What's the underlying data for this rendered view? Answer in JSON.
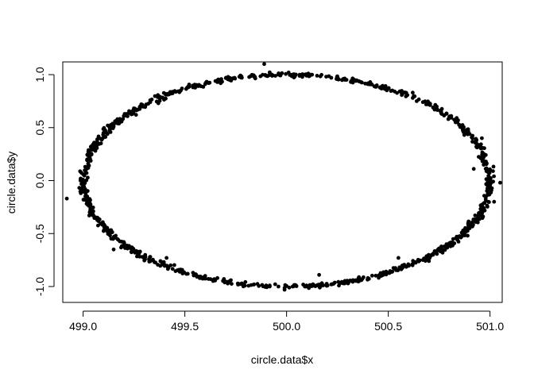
{
  "chart_data": {
    "type": "scatter",
    "title": "",
    "xlabel": "circle.data$x",
    "ylabel": "circle.data$y",
    "xlim": [
      498.9,
      501.06
    ],
    "ylim": [
      -1.15,
      1.12
    ],
    "x_ticks": [
      499.0,
      499.5,
      500.0,
      500.5,
      501.0
    ],
    "x_tick_labels": [
      "499.0",
      "499.5",
      "500.0",
      "500.5",
      "501.0"
    ],
    "y_ticks": [
      -1.0,
      -0.5,
      0.0,
      0.5,
      1.0
    ],
    "y_tick_labels": [
      "-1.0",
      "-0.5",
      "0.0",
      "0.5",
      "1.0"
    ],
    "grid": false,
    "legend": "none",
    "point_color": "#000000",
    "points": [
      [
        501.0,
        0.0
      ],
      [
        500.99,
        0.08
      ],
      [
        500.98,
        0.18
      ],
      [
        500.97,
        0.25
      ],
      [
        500.95,
        0.32
      ],
      [
        500.93,
        0.38
      ],
      [
        500.9,
        0.44
      ],
      [
        500.87,
        0.49
      ],
      [
        500.84,
        0.55
      ],
      [
        500.8,
        0.6
      ],
      [
        500.76,
        0.65
      ],
      [
        500.72,
        0.69
      ],
      [
        500.67,
        0.74
      ],
      [
        500.62,
        0.78
      ],
      [
        500.57,
        0.82
      ],
      [
        500.52,
        0.85
      ],
      [
        500.46,
        0.88
      ],
      [
        500.4,
        0.91
      ],
      [
        500.34,
        0.94
      ],
      [
        500.28,
        0.96
      ],
      [
        500.22,
        0.97
      ],
      [
        500.15,
        0.99
      ],
      [
        500.09,
        1.0
      ],
      [
        500.03,
        1.0
      ],
      [
        499.96,
        1.0
      ],
      [
        499.9,
        0.99
      ],
      [
        499.84,
        0.98
      ],
      [
        499.78,
        0.97
      ],
      [
        499.72,
        0.95
      ],
      [
        499.66,
        0.93
      ],
      [
        499.6,
        0.91
      ],
      [
        499.54,
        0.88
      ],
      [
        499.48,
        0.85
      ],
      [
        499.43,
        0.82
      ],
      [
        499.38,
        0.78
      ],
      [
        499.33,
        0.74
      ],
      [
        499.28,
        0.7
      ],
      [
        499.24,
        0.65
      ],
      [
        499.2,
        0.61
      ],
      [
        499.16,
        0.56
      ],
      [
        499.13,
        0.5
      ],
      [
        499.1,
        0.45
      ],
      [
        499.07,
        0.39
      ],
      [
        499.05,
        0.33
      ],
      [
        499.03,
        0.27
      ],
      [
        499.02,
        0.2
      ],
      [
        499.01,
        0.13
      ],
      [
        499.0,
        0.06
      ],
      [
        499.0,
        -0.01
      ],
      [
        499.01,
        -0.08
      ],
      [
        499.02,
        -0.15
      ],
      [
        499.03,
        -0.22
      ],
      [
        499.05,
        -0.29
      ],
      [
        499.07,
        -0.35
      ],
      [
        499.1,
        -0.41
      ],
      [
        499.13,
        -0.47
      ],
      [
        499.16,
        -0.52
      ],
      [
        499.2,
        -0.58
      ],
      [
        499.24,
        -0.63
      ],
      [
        499.28,
        -0.67
      ],
      [
        499.33,
        -0.72
      ],
      [
        499.38,
        -0.76
      ],
      [
        499.43,
        -0.8
      ],
      [
        499.48,
        -0.84
      ],
      [
        499.54,
        -0.87
      ],
      [
        499.6,
        -0.9
      ],
      [
        499.66,
        -0.92
      ],
      [
        499.72,
        -0.95
      ],
      [
        499.78,
        -0.97
      ],
      [
        499.84,
        -0.98
      ],
      [
        499.9,
        -0.99
      ],
      [
        499.96,
        -1.0
      ],
      [
        500.03,
        -1.0
      ],
      [
        500.09,
        -1.0
      ],
      [
        500.15,
        -0.99
      ],
      [
        500.22,
        -0.98
      ],
      [
        500.28,
        -0.96
      ],
      [
        500.34,
        -0.94
      ],
      [
        500.4,
        -0.92
      ],
      [
        500.46,
        -0.89
      ],
      [
        500.52,
        -0.86
      ],
      [
        500.57,
        -0.82
      ],
      [
        500.62,
        -0.79
      ],
      [
        500.67,
        -0.75
      ],
      [
        500.72,
        -0.7
      ],
      [
        500.76,
        -0.66
      ],
      [
        500.8,
        -0.61
      ],
      [
        500.84,
        -0.56
      ],
      [
        500.87,
        -0.5
      ],
      [
        500.9,
        -0.45
      ],
      [
        500.93,
        -0.39
      ],
      [
        500.95,
        -0.33
      ],
      [
        500.97,
        -0.26
      ],
      [
        500.98,
        -0.19
      ],
      [
        500.99,
        -0.12
      ],
      [
        501.0,
        -0.05
      ],
      [
        501.05,
        -0.02
      ],
      [
        498.92,
        -0.17
      ],
      [
        499.89,
        1.1
      ],
      [
        500.16,
        -0.89
      ],
      [
        501.02,
        -0.2
      ],
      [
        499.06,
        0.28
      ],
      [
        500.92,
        0.11
      ],
      [
        500.55,
        -0.73
      ],
      [
        499.03,
        -0.33
      ],
      [
        499.15,
        -0.65
      ],
      [
        500.01,
        1.02
      ],
      [
        499.99,
        -1.03
      ],
      [
        500.62,
        0.83
      ],
      [
        499.37,
        0.73
      ],
      [
        500.89,
        -0.52
      ],
      [
        499.12,
        0.44
      ],
      [
        500.96,
        0.4
      ],
      [
        499.41,
        -0.73
      ],
      [
        500.7,
        -0.76
      ],
      [
        499.26,
        0.62
      ]
    ]
  }
}
